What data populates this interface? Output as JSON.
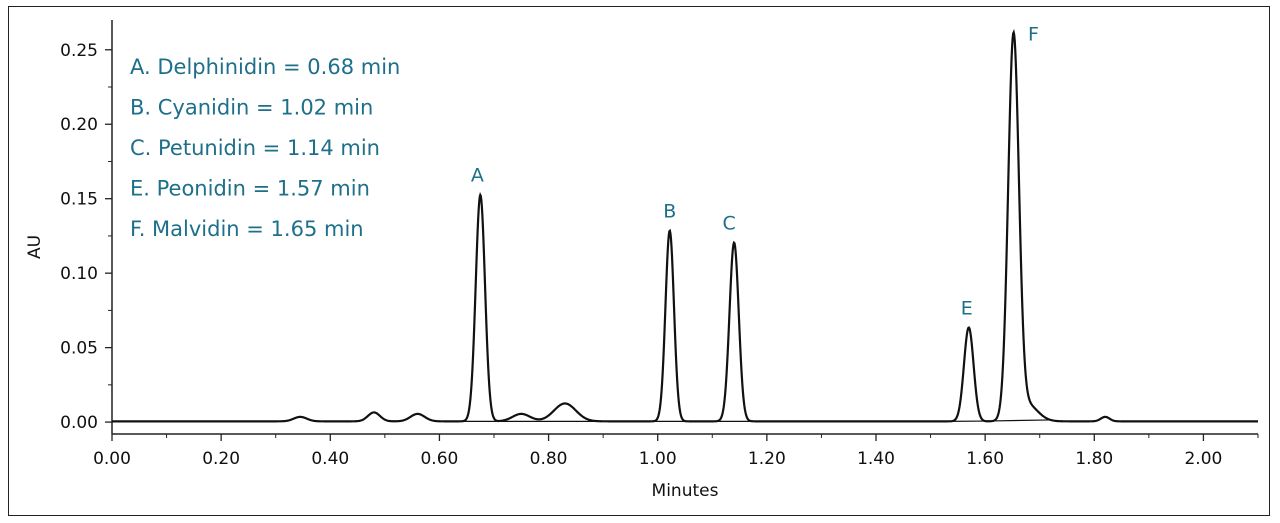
{
  "chart_data": {
    "type": "line",
    "xlabel": "Minutes",
    "ylabel": "AU",
    "xlim": [
      0.0,
      2.1
    ],
    "ylim": [
      -0.008,
      0.27
    ],
    "x_ticks": [
      "0.00",
      "0.20",
      "0.40",
      "0.60",
      "0.80",
      "1.00",
      "1.20",
      "1.40",
      "1.60",
      "1.80",
      "2.00"
    ],
    "y_ticks": [
      "0.00",
      "0.05",
      "0.10",
      "0.15",
      "0.20",
      "0.25"
    ],
    "grid": false,
    "legend_position": "top-left",
    "legend": [
      "A. Delphinidin = 0.68 min",
      "B. Cyanidin = 1.02 min",
      "C. Petunidin = 1.14 min",
      "E. Peonidin = 1.57 min",
      "F. Malvidin = 1.65 min"
    ],
    "peaks": [
      {
        "label": "A",
        "x": 0.675,
        "y": 0.152
      },
      {
        "label": "B",
        "x": 1.022,
        "y": 0.128
      },
      {
        "label": "C",
        "x": 1.14,
        "y": 0.12
      },
      {
        "label": "E",
        "x": 1.57,
        "y": 0.063
      },
      {
        "label": "F",
        "x": 1.652,
        "y": 0.255
      }
    ],
    "minor_peaks": [
      {
        "x": 0.345,
        "y": 0.003
      },
      {
        "x": 0.48,
        "y": 0.006
      },
      {
        "x": 0.56,
        "y": 0.005
      },
      {
        "x": 0.75,
        "y": 0.005
      },
      {
        "x": 0.83,
        "y": 0.012
      },
      {
        "x": 1.82,
        "y": 0.003
      }
    ],
    "colors": {
      "trace": "#111111",
      "annotation": "#1d6f8a",
      "axis": "#222222"
    }
  }
}
